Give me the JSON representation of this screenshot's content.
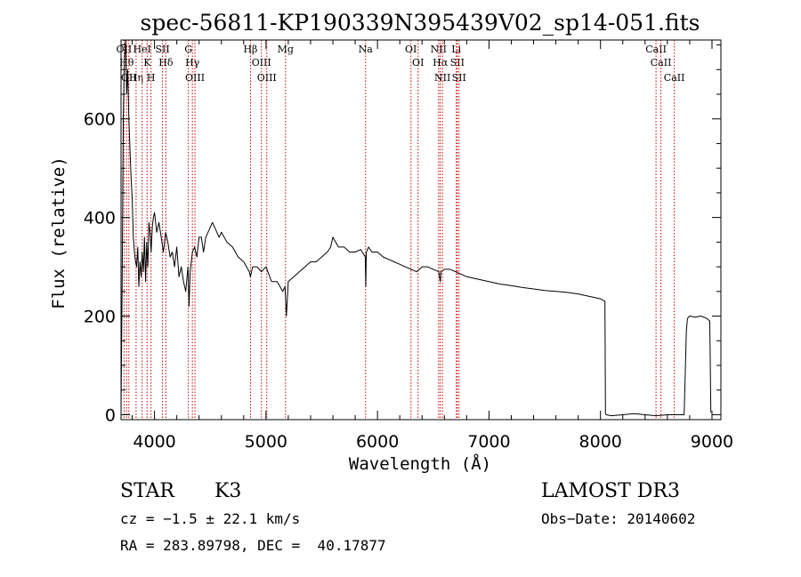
{
  "chart_data": {
    "type": "line",
    "title": "spec-56811-KP190339N395439V02_sp14-051.fits",
    "xlabel": "Wavelength (Å)",
    "ylabel": "Flux (relative)",
    "xlim": [
      3700,
      9080
    ],
    "ylim": [
      -10,
      760
    ],
    "xticks": [
      4000,
      5000,
      6000,
      7000,
      8000,
      9000
    ],
    "yticks": [
      0,
      200,
      400,
      600
    ],
    "series": [
      {
        "name": "spectrum",
        "x": [
          3700,
          3710,
          3720,
          3730,
          3740,
          3750,
          3760,
          3770,
          3780,
          3790,
          3800,
          3810,
          3820,
          3830,
          3840,
          3850,
          3860,
          3870,
          3880,
          3890,
          3900,
          3910,
          3920,
          3930,
          3940,
          3950,
          3960,
          3970,
          3980,
          3990,
          4000,
          4020,
          4040,
          4060,
          4080,
          4100,
          4120,
          4140,
          4160,
          4180,
          4200,
          4220,
          4240,
          4260,
          4280,
          4300,
          4310,
          4320,
          4340,
          4360,
          4380,
          4400,
          4420,
          4440,
          4460,
          4480,
          4500,
          4520,
          4540,
          4560,
          4580,
          4600,
          4650,
          4700,
          4750,
          4800,
          4850,
          4861,
          4880,
          4920,
          4960,
          5000,
          5050,
          5100,
          5150,
          5170,
          5183,
          5200,
          5250,
          5300,
          5350,
          5400,
          5450,
          5500,
          5550,
          5580,
          5600,
          5650,
          5700,
          5750,
          5800,
          5850,
          5890,
          5895,
          5900,
          5920,
          5950,
          6000,
          6050,
          6100,
          6150,
          6200,
          6250,
          6300,
          6350,
          6400,
          6450,
          6500,
          6550,
          6563,
          6570,
          6600,
          6650,
          6700,
          6750,
          6800,
          6900,
          7000,
          7100,
          7200,
          7300,
          7400,
          7500,
          7600,
          7700,
          7800,
          7900,
          8000,
          8040,
          8045,
          8050,
          8100,
          8200,
          8300,
          8400,
          8500,
          8600,
          8700,
          8750,
          8770,
          8780,
          8800,
          8850,
          8900,
          8950,
          8980,
          8990
        ],
        "values": [
          10,
          280,
          600,
          720,
          760,
          650,
          700,
          600,
          540,
          480,
          440,
          360,
          330,
          310,
          300,
          340,
          260,
          310,
          280,
          330,
          290,
          360,
          270,
          350,
          300,
          390,
          370,
          330,
          380,
          400,
          410,
          370,
          390,
          360,
          330,
          370,
          350,
          320,
          330,
          300,
          340,
          280,
          300,
          270,
          250,
          300,
          220,
          290,
          330,
          340,
          320,
          360,
          360,
          330,
          360,
          370,
          380,
          390,
          380,
          370,
          360,
          370,
          350,
          340,
          320,
          310,
          290,
          280,
          300,
          300,
          290,
          300,
          270,
          270,
          250,
          260,
          200,
          270,
          280,
          290,
          300,
          310,
          310,
          320,
          330,
          340,
          360,
          340,
          340,
          330,
          330,
          335,
          320,
          260,
          330,
          340,
          330,
          330,
          320,
          315,
          310,
          305,
          300,
          295,
          290,
          300,
          300,
          295,
          290,
          270,
          290,
          295,
          295,
          290,
          285,
          280,
          275,
          270,
          265,
          262,
          258,
          255,
          252,
          250,
          248,
          245,
          240,
          235,
          230,
          2,
          0,
          -2,
          0,
          2,
          0,
          -2,
          0,
          0,
          0,
          170,
          195,
          200,
          198,
          200,
          196,
          190,
          5
        ],
        "color": "#000000"
      }
    ],
    "line_markers": [
      {
        "wavelength": 3727,
        "label": "OII"
      },
      {
        "wavelength": 3750,
        "label": "Hθ"
      },
      {
        "wavelength": 3770,
        "label": "OII"
      },
      {
        "wavelength": 3835,
        "label": "Hη"
      },
      {
        "wavelength": 3889,
        "label": "HeI"
      },
      {
        "wavelength": 3934,
        "label": "K"
      },
      {
        "wavelength": 3969,
        "label": "H"
      },
      {
        "wavelength": 4072,
        "label": "SII"
      },
      {
        "wavelength": 4102,
        "label": "Hδ"
      },
      {
        "wavelength": 4304,
        "label": "G"
      },
      {
        "wavelength": 4340,
        "label": "Hγ"
      },
      {
        "wavelength": 4363,
        "label": "OIII"
      },
      {
        "wavelength": 4861,
        "label": "Hβ"
      },
      {
        "wavelength": 4959,
        "label": "OIII"
      },
      {
        "wavelength": 5007,
        "label": "OIII"
      },
      {
        "wavelength": 5175,
        "label": "Mg"
      },
      {
        "wavelength": 5893,
        "label": "Na"
      },
      {
        "wavelength": 6300,
        "label": "OI"
      },
      {
        "wavelength": 6364,
        "label": "OI"
      },
      {
        "wavelength": 6548,
        "label": "NII"
      },
      {
        "wavelength": 6563,
        "label": "Hα"
      },
      {
        "wavelength": 6583,
        "label": "NII"
      },
      {
        "wavelength": 6707,
        "label": "Li"
      },
      {
        "wavelength": 6716,
        "label": "SII"
      },
      {
        "wavelength": 6731,
        "label": "SII"
      },
      {
        "wavelength": 8498,
        "label": "CaII"
      },
      {
        "wavelength": 8542,
        "label": "CaII"
      },
      {
        "wavelength": 8662,
        "label": "CaII"
      }
    ],
    "marker_color": "#cc0000"
  },
  "info": {
    "object_class": "STAR",
    "subclass": "K3",
    "survey": "LAMOST DR3",
    "cz": "cz = −1.5 ± 22.1 km/s",
    "obs_date": "Obs−Date: 20140602",
    "coords": "RA = 283.89798, DEC =  40.17877"
  }
}
